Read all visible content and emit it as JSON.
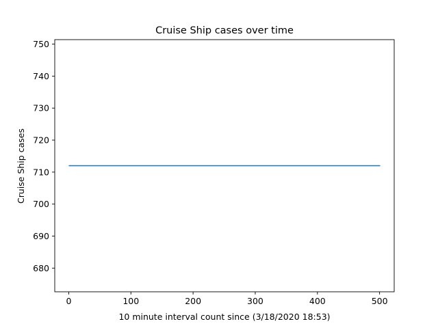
{
  "chart_data": {
    "type": "line",
    "title": "Cruise Ship cases over time",
    "xlabel": "10 minute interval count since (3/18/2020 18:53)",
    "ylabel": "Cruise Ship cases",
    "xlim": [
      -22.5,
      523.5
    ],
    "ylim": [
      672.6,
      751.4
    ],
    "xticks": [
      0,
      100,
      200,
      300,
      400,
      500
    ],
    "yticks": [
      680,
      690,
      700,
      710,
      720,
      730,
      740,
      750
    ],
    "grid": false,
    "series": [
      {
        "color": "#1f77b4",
        "x": [
          0,
          501
        ],
        "y": [
          712,
          712
        ]
      }
    ]
  }
}
